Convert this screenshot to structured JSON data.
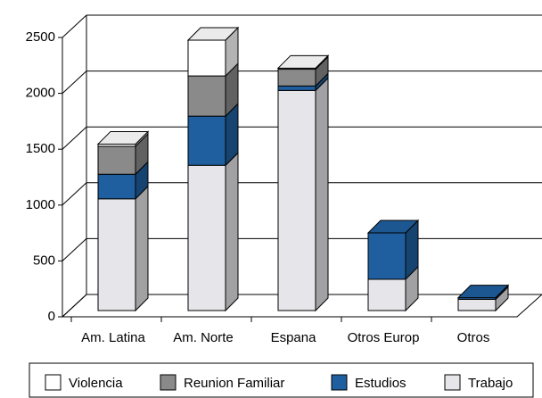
{
  "chart_data": {
    "type": "bar3d_stacked",
    "categories": [
      "Am. Latina",
      "Am. Norte",
      "Espana",
      "Otros Europ",
      "Otros"
    ],
    "series": [
      {
        "name": "Trabajo",
        "color": "#e6e6ea",
        "values": [
          1000,
          1300,
          1970,
          280,
          100
        ]
      },
      {
        "name": "Estudios",
        "color": "#1f5f9f",
        "values": [
          220,
          440,
          40,
          415,
          15
        ]
      },
      {
        "name": "Reunion Familiar",
        "color": "#8a8a8a",
        "values": [
          250,
          360,
          150,
          0,
          0
        ]
      },
      {
        "name": "Violencia",
        "color": "#ffffff",
        "values": [
          20,
          320,
          10,
          0,
          0
        ]
      }
    ],
    "ylim": [
      0,
      2500
    ],
    "yticks": [
      0,
      500,
      1000,
      1500,
      2000,
      2500
    ],
    "grid": true,
    "legend_order": [
      "Violencia",
      "Reunion Familiar",
      "Estudios",
      "Trabajo"
    ]
  }
}
